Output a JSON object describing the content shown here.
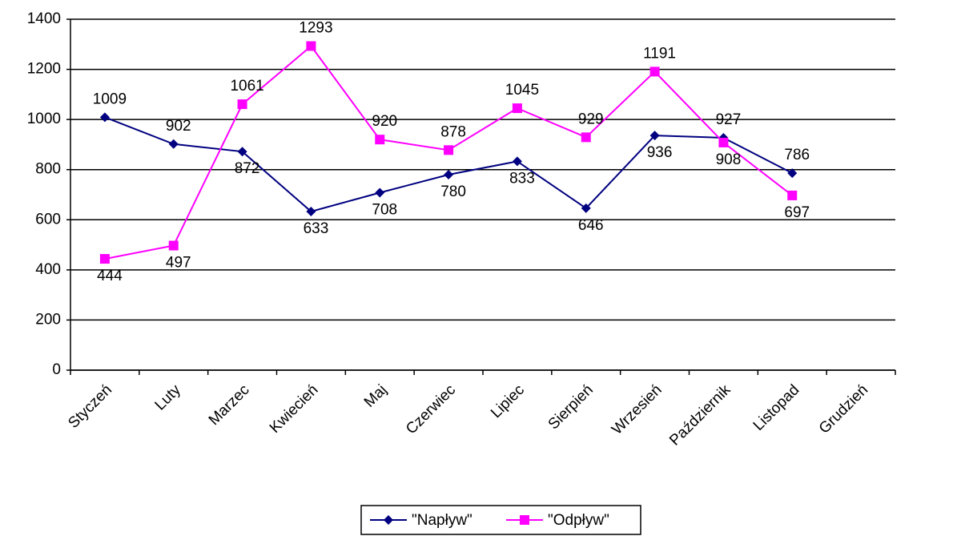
{
  "chart_data": {
    "type": "line",
    "categories": [
      "Styczeń",
      "Luty",
      "Marzec",
      "Kwiecień",
      "Maj",
      "Czerwiec",
      "Lipiec",
      "Sierpień",
      "Wrzesień",
      "Październik",
      "Listopad",
      "Grudzień"
    ],
    "series": [
      {
        "name": "\"Napływ\"",
        "color": "#000080",
        "marker": "diamond",
        "values": [
          1009,
          902,
          872,
          633,
          708,
          780,
          833,
          646,
          936,
          927,
          786,
          null
        ]
      },
      {
        "name": "\"Odpływ\"",
        "color": "#ff00ff",
        "marker": "square",
        "values": [
          444,
          497,
          1061,
          1293,
          920,
          878,
          1045,
          929,
          1191,
          908,
          697,
          null
        ]
      }
    ],
    "ylim": [
      0,
      1400
    ],
    "yticks": [
      0,
      200,
      400,
      600,
      800,
      1000,
      1200,
      1400
    ],
    "grid": true,
    "legend": "bottom"
  }
}
